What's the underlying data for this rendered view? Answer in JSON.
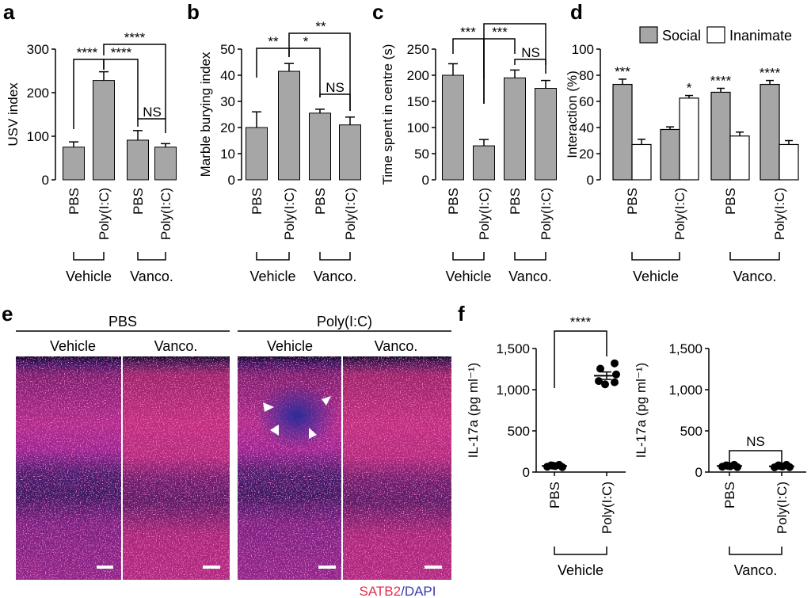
{
  "panels": {
    "a": "a",
    "b": "b",
    "c": "c",
    "d": "d",
    "e": "e",
    "f": "f"
  },
  "groups": {
    "vehicle": "Vehicle",
    "vanco": "Vanco."
  },
  "microscopy": {
    "pbs": "PBS",
    "polyic": "Poly(I:C)",
    "vehicle": "Vehicle",
    "vanco": "Vanco.",
    "stain_red": "SATB2",
    "stain_sep": "/",
    "stain_blue": "DAPI"
  },
  "colors": {
    "bar_gray": "#a6a6a6",
    "bar_white": "#ffffff",
    "stain_red": "#e03050",
    "stain_blue": "#3a3ab0"
  },
  "chart_data": [
    {
      "panel": "a",
      "type": "bar",
      "categories": [
        "PBS",
        "Poly(I:C)",
        "PBS",
        "Poly(I:C)"
      ],
      "values": [
        75,
        228,
        91,
        75
      ],
      "errors": [
        12,
        20,
        22,
        8
      ],
      "ylabel": "USV index",
      "ylim": [
        0,
        300
      ],
      "yticks": [
        0,
        100,
        200,
        300
      ],
      "significance": [
        {
          "from": 0,
          "to": 1,
          "label": "****"
        },
        {
          "from": 1,
          "to": 2,
          "label": "****"
        },
        {
          "from": 1,
          "to": 3,
          "label": "****"
        },
        {
          "from": 2,
          "to": 3,
          "label": "NS"
        }
      ]
    },
    {
      "panel": "b",
      "type": "bar",
      "categories": [
        "PBS",
        "Poly(I:C)",
        "PBS",
        "Poly(I:C)"
      ],
      "values": [
        20,
        41.5,
        25.5,
        21
      ],
      "errors": [
        6,
        3,
        1.5,
        3
      ],
      "ylabel": "Marble burying index",
      "ylim": [
        0,
        50
      ],
      "yticks": [
        0,
        10,
        20,
        30,
        40,
        50
      ],
      "significance": [
        {
          "from": 0,
          "to": 1,
          "label": "**"
        },
        {
          "from": 1,
          "to": 2,
          "label": "*"
        },
        {
          "from": 1,
          "to": 3,
          "label": "**"
        },
        {
          "from": 2,
          "to": 3,
          "label": "NS"
        }
      ]
    },
    {
      "panel": "c",
      "type": "bar",
      "categories": [
        "PBS",
        "Poly(I:C)",
        "PBS",
        "Poly(I:C)"
      ],
      "values": [
        200,
        65,
        195,
        175
      ],
      "errors": [
        22,
        12,
        15,
        15
      ],
      "ylabel": "Time spent in centre (s)",
      "ylim": [
        0,
        250
      ],
      "yticks": [
        0,
        50,
        100,
        150,
        200,
        250
      ],
      "significance": [
        {
          "from": 0,
          "to": 1,
          "label": "***"
        },
        {
          "from": 1,
          "to": 2,
          "label": "***"
        },
        {
          "from": 1,
          "to": 3,
          "label": ""
        },
        {
          "from": 2,
          "to": 3,
          "label": "NS"
        }
      ]
    },
    {
      "panel": "d",
      "type": "bar",
      "categories": [
        "PBS",
        "Poly(I:C)",
        "PBS",
        "Poly(I:C)"
      ],
      "series": [
        {
          "name": "Social",
          "values": [
            73,
            38.5,
            67,
            73
          ],
          "errors": [
            4,
            2,
            3,
            3
          ],
          "stars": [
            "***",
            "",
            "****",
            "****"
          ]
        },
        {
          "name": "Inanimate",
          "values": [
            27,
            62.5,
            33.5,
            27
          ],
          "errors": [
            4,
            2,
            3,
            3
          ],
          "stars": [
            "",
            "*",
            "",
            ""
          ]
        }
      ],
      "ylabel": "Interaction (%)",
      "ylim": [
        0,
        100
      ],
      "yticks": [
        0,
        20,
        40,
        60,
        80,
        100
      ],
      "legend": "top"
    },
    {
      "panel": "f",
      "type": "scatter",
      "categories": [
        "PBS",
        "Poly(I:C)"
      ],
      "group": "Vehicle",
      "points": [
        [
          65,
          82,
          72,
          88,
          60,
          78
        ],
        [
          1320,
          1255,
          1105,
          1185,
          1065,
          1090
        ]
      ],
      "means": [
        75,
        1170
      ],
      "errors": [
        8,
        45
      ],
      "ylabel": "IL-17a (pg ml⁻¹)",
      "ylim": [
        0,
        1500
      ],
      "yticks": [
        "0",
        "500",
        "1,000",
        "1,500"
      ],
      "significance": [
        {
          "from": 0,
          "to": 1,
          "label": "****"
        }
      ]
    },
    {
      "panel": "f",
      "type": "scatter",
      "categories": [
        "PBS",
        "Poly(I:C)"
      ],
      "group": "Vanco.",
      "points": [
        [
          65,
          82,
          70,
          88,
          60,
          75
        ],
        [
          58,
          82,
          66,
          88,
          60,
          74
        ]
      ],
      "means": [
        75,
        70
      ],
      "errors": [
        6,
        6
      ],
      "ylabel": "IL-17a (pg ml⁻¹)",
      "ylim": [
        0,
        1500
      ],
      "yticks": [
        "0",
        "500",
        "1,000",
        "1,500"
      ],
      "significance": [
        {
          "from": 0,
          "to": 1,
          "label": "NS"
        }
      ]
    }
  ]
}
